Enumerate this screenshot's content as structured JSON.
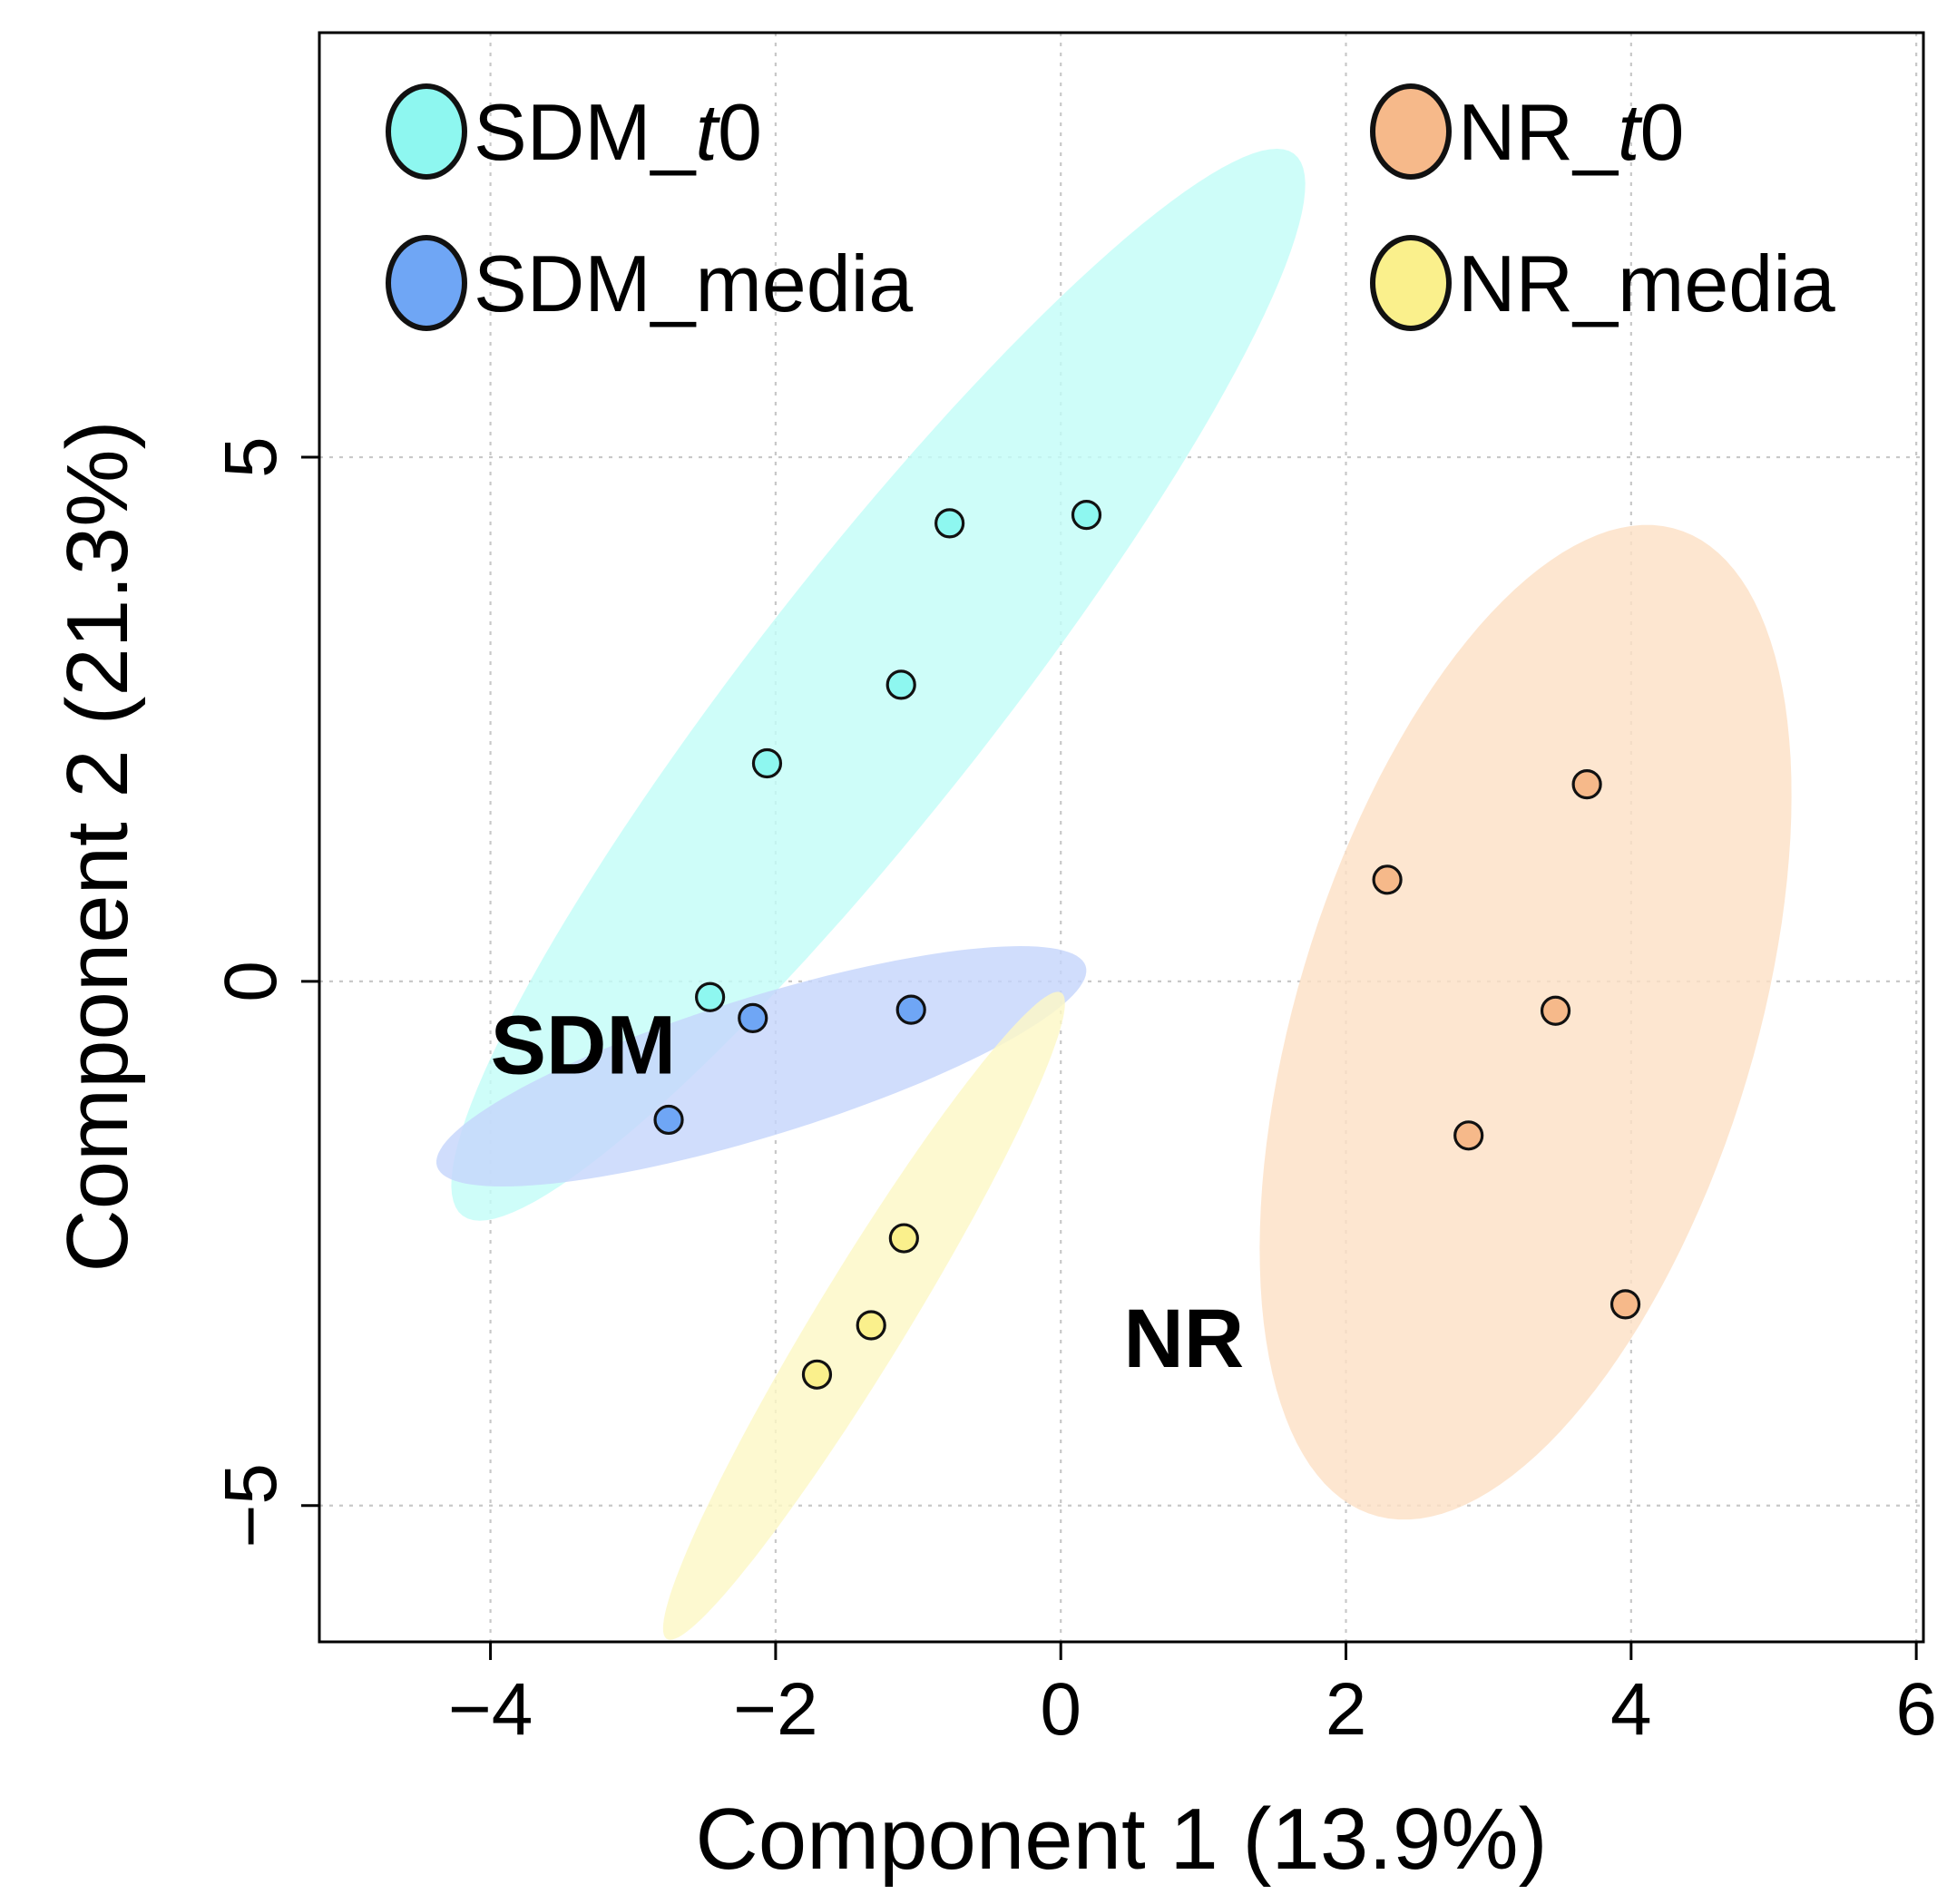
{
  "chart_data": {
    "type": "scatter",
    "title": "",
    "xlabel": "Component 1 (13.9%)",
    "ylabel": "Component 2 (21.3%)",
    "xlim": [
      -5.2,
      6.05
    ],
    "ylim": [
      -6.3,
      9.05
    ],
    "xticks": [
      -4,
      -2,
      0,
      2,
      4,
      6
    ],
    "yticks": [
      -5,
      0,
      5
    ],
    "xtick_labels": [
      "−4",
      "−2",
      "0",
      "2",
      "4",
      "6"
    ],
    "ytick_labels": [
      "−5",
      "0",
      "5"
    ],
    "grid": true,
    "legend": "top",
    "series": [
      {
        "name": "SDM_t0",
        "name_prefix": "SDM_",
        "name_italic": "t",
        "name_suffix": "0",
        "color": "#8ef7f0",
        "ellipse_color": "#c3fcf8",
        "points": [
          [
            0.18,
            4.45
          ],
          [
            -0.78,
            4.37
          ],
          [
            -1.12,
            2.83
          ],
          [
            -2.06,
            2.08
          ],
          [
            -2.46,
            -0.15
          ]
        ],
        "ellipse": {
          "cx": -1.28,
          "cy": 2.83,
          "rx": 5.85,
          "ry": 0.94,
          "angle_deg": 60.5
        }
      },
      {
        "name": "SDM_media",
        "name_prefix": "SDM_media",
        "name_italic": "",
        "name_suffix": "",
        "color": "#6fa6f5",
        "ellipse_color": "#c6d6fb",
        "points": [
          [
            -2.16,
            -0.35
          ],
          [
            -1.05,
            -0.27
          ],
          [
            -2.75,
            -1.32
          ]
        ],
        "ellipse": {
          "cx": -2.1,
          "cy": -0.81,
          "rx": 2.47,
          "ry": 0.64,
          "angle_deg": 23.5
        }
      },
      {
        "name": "NR_t0",
        "name_prefix": "NR_",
        "name_italic": "t",
        "name_suffix": "0",
        "color": "#f6b98a",
        "ellipse_color": "#fce0c6",
        "points": [
          [
            3.69,
            1.88
          ],
          [
            2.29,
            0.97
          ],
          [
            3.47,
            -0.28
          ],
          [
            2.86,
            -1.47
          ],
          [
            3.96,
            -3.08
          ]
        ],
        "ellipse": {
          "cx": 3.26,
          "cy": -0.39,
          "rx": 4.83,
          "ry": 1.63,
          "angle_deg": 78.5
        }
      },
      {
        "name": "NR_media",
        "name_prefix": "NR_media",
        "name_italic": "",
        "name_suffix": "",
        "color": "#faf08c",
        "ellipse_color": "#fdf8c6",
        "points": [
          [
            -1.1,
            -2.45
          ],
          [
            -1.33,
            -3.28
          ],
          [
            -1.71,
            -3.75
          ]
        ],
        "ellipse": {
          "cx": -1.38,
          "cy": -3.19,
          "rx": 3.38,
          "ry": 0.34,
          "angle_deg": 66.0
        }
      }
    ],
    "annotations": [
      {
        "text": "SDM",
        "x": -4.0,
        "y": -0.6
      },
      {
        "text": "NR",
        "x": 0.44,
        "y": -3.4
      }
    ]
  }
}
